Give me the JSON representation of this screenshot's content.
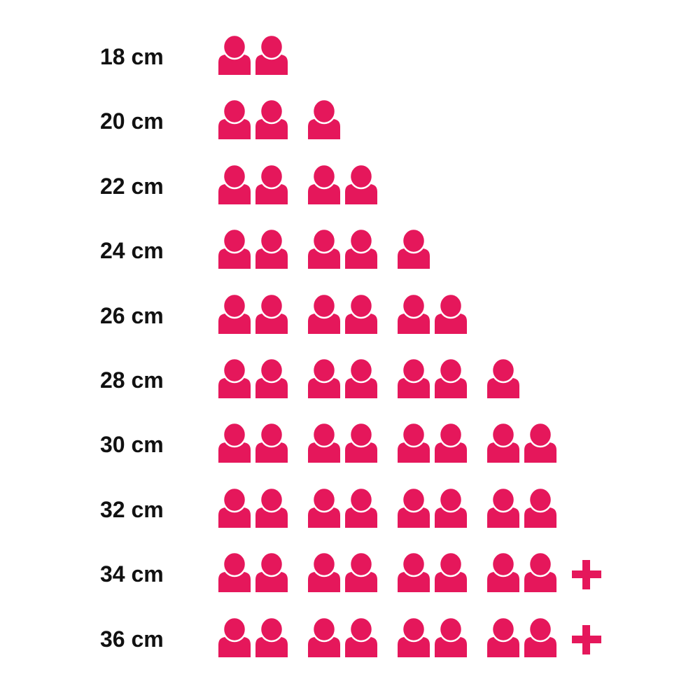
{
  "chart_data": {
    "type": "pictogram",
    "icon": "person-icon",
    "overflow_icon": "plus-icon",
    "color": "#E5175B",
    "rows": [
      {
        "label": "18 cm",
        "count": 2,
        "plus": false
      },
      {
        "label": "20 cm",
        "count": 3,
        "plus": false
      },
      {
        "label": "22 cm",
        "count": 4,
        "plus": false
      },
      {
        "label": "24 cm",
        "count": 5,
        "plus": false
      },
      {
        "label": "26 cm",
        "count": 6,
        "plus": false
      },
      {
        "label": "28 cm",
        "count": 7,
        "plus": false
      },
      {
        "label": "30 cm",
        "count": 8,
        "plus": false
      },
      {
        "label": "32 cm",
        "count": 8,
        "plus": false
      },
      {
        "label": "34 cm",
        "count": 8,
        "plus": true
      },
      {
        "label": "36 cm",
        "count": 8,
        "plus": true
      }
    ]
  }
}
